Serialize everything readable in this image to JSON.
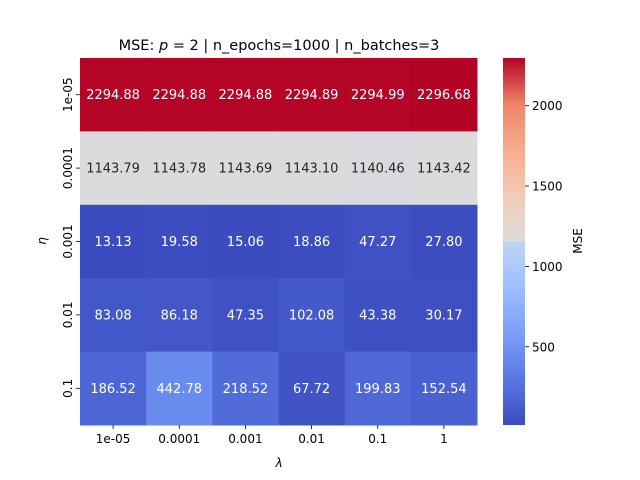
{
  "chart_data": {
    "type": "heatmap",
    "title": "MSE: p = 2 | n_epochs=1000 | n_batches=3",
    "title_parts": {
      "prefix": "MSE: ",
      "var": "p",
      "eq": " = 2",
      "rest": " | n_epochs=1000 | n_batches=3"
    },
    "xlabel": "λ",
    "ylabel": "η",
    "x_categories": [
      "1e-05",
      "0.0001",
      "0.001",
      "0.01",
      "0.1",
      "1"
    ],
    "y_categories": [
      "1e-05",
      "0.0001",
      "0.001",
      "0.01",
      "0.1"
    ],
    "values": [
      [
        2294.88,
        2294.88,
        2294.88,
        2294.89,
        2294.99,
        2296.68
      ],
      [
        1143.79,
        1143.78,
        1143.69,
        1143.1,
        1140.46,
        1143.42
      ],
      [
        13.13,
        19.58,
        15.06,
        18.86,
        47.27,
        27.8
      ],
      [
        83.08,
        86.18,
        47.35,
        102.08,
        43.38,
        30.17
      ],
      [
        186.52,
        442.78,
        218.52,
        67.72,
        199.83,
        152.54
      ]
    ],
    "value_format": "0.00",
    "colormap": "coolwarm",
    "colorbar": {
      "label": "MSE",
      "range": [
        13.13,
        2296.68
      ],
      "ticks": [
        500,
        1000,
        1500,
        2000
      ]
    }
  }
}
